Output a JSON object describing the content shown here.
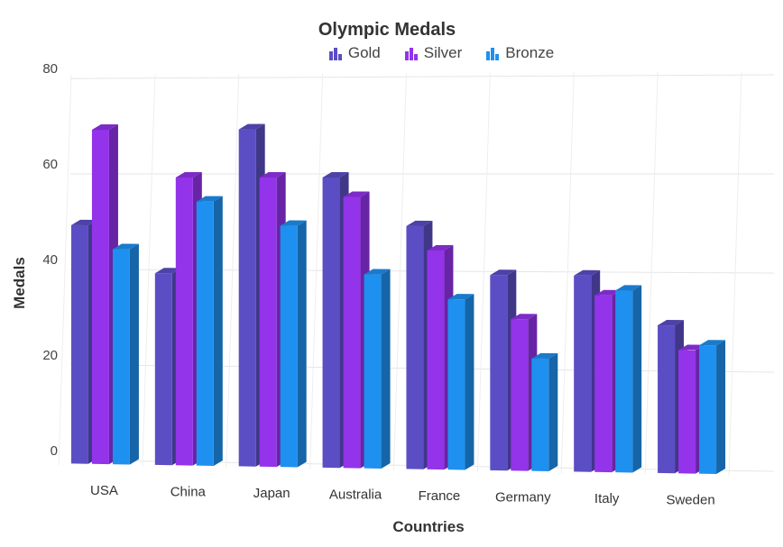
{
  "chart_data": {
    "type": "bar",
    "title": "Olympic Medals",
    "xlabel": "Countries",
    "ylabel": "Medals",
    "categories": [
      "USA",
      "China",
      "Japan",
      "Australia",
      "France",
      "Germany",
      "Italy",
      "Sweden"
    ],
    "series": [
      {
        "name": "Gold",
        "values": [
          50,
          40,
          70,
          60,
          50,
          40,
          40,
          30
        ],
        "color": "#5B4EC4"
      },
      {
        "name": "Silver",
        "values": [
          70,
          60,
          60,
          56,
          45,
          31,
          36,
          25
        ],
        "color": "#9333EA"
      },
      {
        "name": "Bronze",
        "values": [
          45,
          55,
          50,
          40,
          35,
          23,
          37,
          26
        ],
        "color": "#1E90F0"
      }
    ],
    "ylim": [
      0,
      80
    ],
    "yticks": [
      0,
      20,
      40,
      60,
      80
    ],
    "grid": true,
    "legend_position": "top",
    "style": "3d-column"
  }
}
